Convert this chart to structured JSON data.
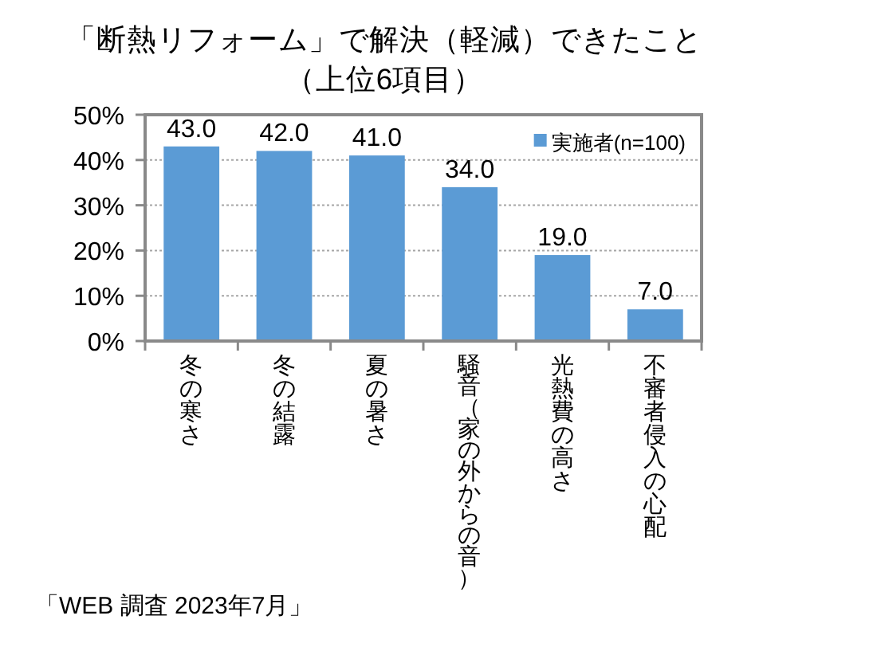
{
  "chart_data": {
    "type": "bar",
    "title": "「断熱リフォーム」で解決（軽減）できたこと（上位6項目）",
    "categories": [
      "冬の寒さ",
      "冬の結露",
      "夏の暑さ",
      "騒音（家の外からの音）",
      "光熱費の高さ",
      "不審者侵入の心配"
    ],
    "series": [
      {
        "name": "実施者(n=100)",
        "color": "#5b9bd5",
        "values": [
          43,
          42,
          41,
          34,
          19,
          7
        ],
        "value_labels": [
          "43.0",
          "42.0",
          "41.0",
          "34.0",
          "19.0",
          "7.0"
        ]
      }
    ],
    "ylim": [
      0,
      50
    ],
    "yticks": [
      {
        "value": 0,
        "label": "0%"
      },
      {
        "value": 10,
        "label": "10%"
      },
      {
        "value": 20,
        "label": "20%"
      },
      {
        "value": 30,
        "label": "30%"
      },
      {
        "value": 40,
        "label": "40%"
      },
      {
        "value": 50,
        "label": "50%"
      }
    ],
    "grid": "y",
    "legend": "top right",
    "annotations": [
      "「WEB 調査 2023年7月」"
    ]
  }
}
